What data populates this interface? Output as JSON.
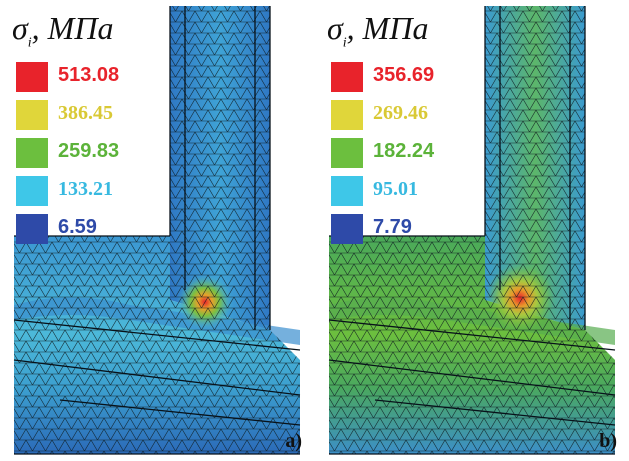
{
  "panels": [
    {
      "id": "a",
      "legend_title": "σ",
      "legend_subscript": "i",
      "legend_unit": ", МПа",
      "legend": [
        {
          "value": "513.08",
          "color": "#e8232b",
          "text_color": "#e8232b",
          "font": "sans"
        },
        {
          "value": "386.45",
          "color": "#e0d63a",
          "text_color": "#d9c935",
          "font": "serif"
        },
        {
          "value": "259.83",
          "color": "#6cbf3e",
          "text_color": "#5cb33a",
          "font": "sans"
        },
        {
          "value": "133.21",
          "color": "#3ec7e8",
          "text_color": "#37b9e0",
          "font": "serif"
        },
        {
          "value": "6.59",
          "color": "#2e4aa8",
          "text_color": "#2e4aa8",
          "font": "sans"
        }
      ],
      "label": "a)"
    },
    {
      "id": "b",
      "legend_title": "σ",
      "legend_subscript": "i",
      "legend_unit": ", МПа",
      "legend": [
        {
          "value": "356.69",
          "color": "#e8232b",
          "text_color": "#e8232b",
          "font": "sans"
        },
        {
          "value": "269.46",
          "color": "#e0d63a",
          "text_color": "#d9c935",
          "font": "serif"
        },
        {
          "value": "182.24",
          "color": "#6cbf3e",
          "text_color": "#5cb33a",
          "font": "sans"
        },
        {
          "value": "95.01",
          "color": "#3ec7e8",
          "text_color": "#37b9e0",
          "font": "serif"
        },
        {
          "value": "7.79",
          "color": "#2e4aa8",
          "text_color": "#2e4aa8",
          "font": "sans"
        }
      ],
      "label": "b)"
    }
  ],
  "colors": {
    "mesh_low": "#2f7fc8",
    "mesh_mid": "#45b3d8",
    "mesh_green": "#58a84c",
    "hotspot": "#e8232b",
    "mesh_line": "#0d1a1f"
  }
}
